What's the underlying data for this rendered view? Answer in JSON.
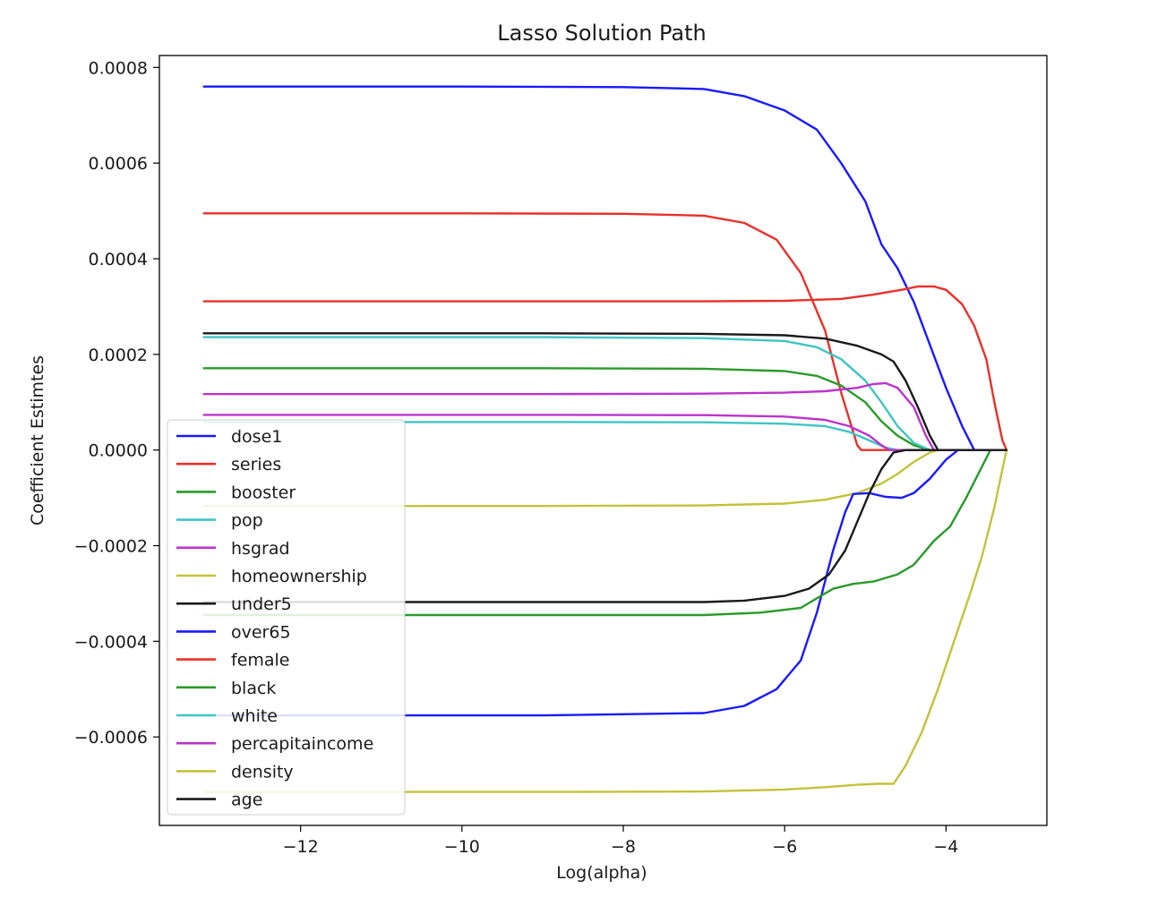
{
  "chart_data": {
    "type": "line",
    "title": "Lasso Solution Path",
    "xlabel": "Log(alpha)",
    "ylabel": "Coefficient Estimtes",
    "xlim": [
      -13.75,
      -2.75
    ],
    "ylim": [
      -0.000785,
      0.000825
    ],
    "xticks": [
      -12,
      -10,
      -8,
      -6,
      -4
    ],
    "xtick_labels": [
      "−12",
      "−10",
      "−8",
      "−6",
      "−4"
    ],
    "yticks": [
      0.0008,
      0.0006,
      0.0004,
      0.0002,
      0.0,
      -0.0002,
      -0.0004,
      -0.0006
    ],
    "ytick_labels": [
      "0.0008",
      "0.0006",
      "0.0004",
      "0.0002",
      "0.0000",
      "−0.0002",
      "−0.0004",
      "−0.0006"
    ],
    "grid": false,
    "legend_position": "lower-left",
    "series": [
      {
        "name": "dose1",
        "color": "#1919ff",
        "points": [
          [
            -13.2,
            0.00076
          ],
          [
            -10,
            0.00076
          ],
          [
            -8,
            0.000759
          ],
          [
            -7,
            0.000755
          ],
          [
            -6.5,
            0.00074
          ],
          [
            -6,
            0.00071
          ],
          [
            -5.6,
            0.00067
          ],
          [
            -5.3,
            0.0006
          ],
          [
            -5.0,
            0.00052
          ],
          [
            -4.8,
            0.00043
          ],
          [
            -4.6,
            0.00038
          ],
          [
            -4.4,
            0.00031
          ],
          [
            -4.2,
            0.00022
          ],
          [
            -4.0,
            0.00013
          ],
          [
            -3.8,
            5e-05
          ],
          [
            -3.65,
            0.0
          ],
          [
            -3.25,
            0.0
          ]
        ]
      },
      {
        "name": "series",
        "color": "#e8302a",
        "points": [
          [
            -13.2,
            0.000495
          ],
          [
            -10,
            0.000495
          ],
          [
            -8,
            0.000494
          ],
          [
            -7,
            0.00049
          ],
          [
            -6.5,
            0.000475
          ],
          [
            -6.1,
            0.00044
          ],
          [
            -5.8,
            0.00037
          ],
          [
            -5.5,
            0.00025
          ],
          [
            -5.3,
            0.00012
          ],
          [
            -5.1,
            1e-05
          ],
          [
            -5.05,
            0.0
          ],
          [
            -3.25,
            0.0
          ]
        ]
      },
      {
        "name": "booster",
        "color": "#2a9a2a",
        "points": [
          [
            -13.2,
            0.000171
          ],
          [
            -9,
            0.000171
          ],
          [
            -7,
            0.00017
          ],
          [
            -6,
            0.000165
          ],
          [
            -5.6,
            0.000155
          ],
          [
            -5.3,
            0.000135
          ],
          [
            -5.0,
            0.0001
          ],
          [
            -4.8,
            6e-05
          ],
          [
            -4.6,
            3e-05
          ],
          [
            -4.4,
            1e-05
          ],
          [
            -4.2,
            0.0
          ],
          [
            -3.25,
            0.0
          ]
        ]
      },
      {
        "name": "pop",
        "color": "#40c4c4",
        "points": [
          [
            -13.2,
            0.000236
          ],
          [
            -9,
            0.000236
          ],
          [
            -7,
            0.000234
          ],
          [
            -6,
            0.000228
          ],
          [
            -5.6,
            0.000215
          ],
          [
            -5.3,
            0.00019
          ],
          [
            -5.0,
            0.000145
          ],
          [
            -4.8,
            0.0001
          ],
          [
            -4.6,
            5e-05
          ],
          [
            -4.4,
            1.5e-05
          ],
          [
            -4.2,
            0.0
          ],
          [
            -3.25,
            0.0
          ]
        ]
      },
      {
        "name": "hsgrad",
        "color": "#bb33cc",
        "points": [
          [
            -13.2,
            0.000117
          ],
          [
            -9,
            0.000117
          ],
          [
            -7,
            0.000118
          ],
          [
            -6,
            0.00012
          ],
          [
            -5.5,
            0.000123
          ],
          [
            -5.1,
            0.00013
          ],
          [
            -4.9,
            0.000138
          ],
          [
            -4.75,
            0.00014
          ],
          [
            -4.6,
            0.00013
          ],
          [
            -4.4,
            9e-05
          ],
          [
            -4.25,
            3e-05
          ],
          [
            -4.15,
            0.0
          ],
          [
            -3.25,
            0.0
          ]
        ]
      },
      {
        "name": "homeownership",
        "color": "#c2c23a",
        "points": [
          [
            -13.2,
            -0.000117
          ],
          [
            -9,
            -0.000117
          ],
          [
            -7,
            -0.000116
          ],
          [
            -6,
            -0.000112
          ],
          [
            -5.5,
            -0.000104
          ],
          [
            -5.1,
            -9e-05
          ],
          [
            -4.8,
            -7e-05
          ],
          [
            -4.6,
            -5e-05
          ],
          [
            -4.4,
            -2.5e-05
          ],
          [
            -4.2,
            -5e-06
          ],
          [
            -4.1,
            0.0
          ],
          [
            -3.25,
            0.0
          ]
        ]
      },
      {
        "name": "under5",
        "color": "#1a1a1a",
        "points": [
          [
            -13.2,
            0.000244
          ],
          [
            -9,
            0.000244
          ],
          [
            -7,
            0.000243
          ],
          [
            -6,
            0.00024
          ],
          [
            -5.5,
            0.000233
          ],
          [
            -5.1,
            0.000218
          ],
          [
            -4.8,
            0.0002
          ],
          [
            -4.65,
            0.000185
          ],
          [
            -4.5,
            0.000145
          ],
          [
            -4.35,
            9e-05
          ],
          [
            -4.2,
            3e-05
          ],
          [
            -4.1,
            0.0
          ],
          [
            -3.25,
            0.0
          ]
        ]
      },
      {
        "name": "over65",
        "color": "#1919ff",
        "points": [
          [
            -13.2,
            -0.000555
          ],
          [
            -9,
            -0.000555
          ],
          [
            -7,
            -0.00055
          ],
          [
            -6.5,
            -0.000535
          ],
          [
            -6.1,
            -0.0005
          ],
          [
            -5.8,
            -0.00044
          ],
          [
            -5.6,
            -0.00034
          ],
          [
            -5.4,
            -0.00021
          ],
          [
            -5.25,
            -0.00013
          ],
          [
            -5.15,
            -9.2e-05
          ],
          [
            -4.95,
            -9e-05
          ],
          [
            -4.75,
            -9.8e-05
          ],
          [
            -4.55,
            -0.0001
          ],
          [
            -4.4,
            -9e-05
          ],
          [
            -4.2,
            -6e-05
          ],
          [
            -4.0,
            -2e-05
          ],
          [
            -3.85,
            0.0
          ],
          [
            -3.25,
            0.0
          ]
        ]
      },
      {
        "name": "female",
        "color": "#e8302a",
        "points": [
          [
            -13.2,
            0.000311
          ],
          [
            -9,
            0.000311
          ],
          [
            -7,
            0.000311
          ],
          [
            -6,
            0.000312
          ],
          [
            -5.3,
            0.000316
          ],
          [
            -4.9,
            0.000325
          ],
          [
            -4.55,
            0.000335
          ],
          [
            -4.35,
            0.000342
          ],
          [
            -4.15,
            0.000342
          ],
          [
            -4.0,
            0.000335
          ],
          [
            -3.8,
            0.000305
          ],
          [
            -3.65,
            0.00026
          ],
          [
            -3.5,
            0.00019
          ],
          [
            -3.4,
            0.0001
          ],
          [
            -3.3,
            2e-05
          ],
          [
            -3.25,
            0.0
          ]
        ]
      },
      {
        "name": "black",
        "color": "#2a9a2a",
        "points": [
          [
            -13.2,
            -0.000345
          ],
          [
            -9,
            -0.000345
          ],
          [
            -7,
            -0.000345
          ],
          [
            -6.3,
            -0.00034
          ],
          [
            -5.8,
            -0.00033
          ],
          [
            -5.6,
            -0.00031
          ],
          [
            -5.4,
            -0.00029
          ],
          [
            -5.15,
            -0.00028
          ],
          [
            -4.9,
            -0.000275
          ],
          [
            -4.6,
            -0.00026
          ],
          [
            -4.4,
            -0.00024
          ],
          [
            -4.15,
            -0.00019
          ],
          [
            -3.95,
            -0.00016
          ],
          [
            -3.75,
            -0.0001
          ],
          [
            -3.6,
            -5e-05
          ],
          [
            -3.45,
            0.0
          ],
          [
            -3.25,
            0.0
          ]
        ]
      },
      {
        "name": "white",
        "color": "#40c4c4",
        "points": [
          [
            -13.2,
            5.85e-05
          ],
          [
            -9,
            5.85e-05
          ],
          [
            -7,
            5.8e-05
          ],
          [
            -6,
            5.5e-05
          ],
          [
            -5.5,
            5e-05
          ],
          [
            -5.2,
            3.8e-05
          ],
          [
            -4.95,
            2e-05
          ],
          [
            -4.75,
            5e-06
          ],
          [
            -4.6,
            0.0
          ],
          [
            -3.25,
            0.0
          ]
        ]
      },
      {
        "name": "percapitaincome",
        "color": "#bb33cc",
        "points": [
          [
            -13.2,
            7.35e-05
          ],
          [
            -9,
            7.35e-05
          ],
          [
            -7,
            7.3e-05
          ],
          [
            -6,
            7e-05
          ],
          [
            -5.5,
            6.3e-05
          ],
          [
            -5.2,
            5e-05
          ],
          [
            -4.95,
            3e-05
          ],
          [
            -4.8,
            1e-05
          ],
          [
            -4.7,
            0.0
          ],
          [
            -3.25,
            0.0
          ]
        ]
      },
      {
        "name": "density",
        "color": "#c2c23a",
        "points": [
          [
            -13.2,
            -0.000715
          ],
          [
            -9,
            -0.000715
          ],
          [
            -7,
            -0.000714
          ],
          [
            -6,
            -0.00071
          ],
          [
            -5.5,
            -0.000705
          ],
          [
            -5.1,
            -0.0007
          ],
          [
            -4.85,
            -0.000698
          ],
          [
            -4.65,
            -0.000698
          ],
          [
            -4.5,
            -0.00066
          ],
          [
            -4.3,
            -0.00059
          ],
          [
            -4.1,
            -0.0005
          ],
          [
            -3.9,
            -0.0004
          ],
          [
            -3.7,
            -0.0003
          ],
          [
            -3.55,
            -0.00022
          ],
          [
            -3.4,
            -0.00012
          ],
          [
            -3.3,
            -4e-05
          ],
          [
            -3.25,
            0.0
          ]
        ]
      },
      {
        "name": "age",
        "color": "#1a1a1a",
        "points": [
          [
            -13.2,
            -0.000318
          ],
          [
            -9,
            -0.000318
          ],
          [
            -7,
            -0.000318
          ],
          [
            -6.5,
            -0.000315
          ],
          [
            -6,
            -0.000305
          ],
          [
            -5.7,
            -0.00029
          ],
          [
            -5.45,
            -0.00026
          ],
          [
            -5.25,
            -0.00021
          ],
          [
            -5.1,
            -0.00015
          ],
          [
            -4.95,
            -9e-05
          ],
          [
            -4.8,
            -4e-05
          ],
          [
            -4.65,
            -5e-06
          ],
          [
            -4.5,
            0.0
          ],
          [
            -3.25,
            0.0
          ]
        ]
      }
    ]
  }
}
